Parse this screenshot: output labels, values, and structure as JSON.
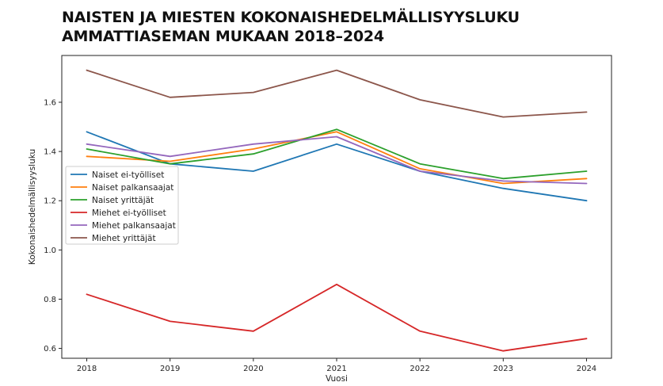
{
  "title": {
    "line1": "NAISTEN JA MIESTEN KOKONAISHEDELMÄLLISYYSLUKU",
    "line2": "AMMATTIASEMAN MUKAAN 2018–2024"
  },
  "chart_data": {
    "type": "line",
    "xlabel": "Vuosi",
    "ylabel": "Kokonaishedelmällisyysluku",
    "x": [
      2018,
      2019,
      2020,
      2021,
      2022,
      2023,
      2024
    ],
    "xlim": [
      2017.7,
      2024.3
    ],
    "ylim": [
      0.56,
      1.79
    ],
    "yticks": [
      0.6,
      0.8,
      1.0,
      1.2,
      1.4,
      1.6
    ],
    "grid": false,
    "legend_position": "center-left",
    "series": [
      {
        "name": "Naiset ei-työlliset",
        "color": "#1f77b4",
        "values": [
          1.48,
          1.35,
          1.32,
          1.43,
          1.32,
          1.25,
          1.2
        ]
      },
      {
        "name": "Naiset palkansaajat",
        "color": "#ff7f0e",
        "values": [
          1.38,
          1.36,
          1.41,
          1.48,
          1.33,
          1.27,
          1.29
        ]
      },
      {
        "name": "Naiset yrittäjät",
        "color": "#2ca02c",
        "values": [
          1.41,
          1.35,
          1.39,
          1.49,
          1.35,
          1.29,
          1.32
        ]
      },
      {
        "name": "Miehet ei-työlliset",
        "color": "#d62728",
        "values": [
          0.82,
          0.71,
          0.67,
          0.86,
          0.67,
          0.59,
          0.64
        ]
      },
      {
        "name": "Miehet palkansaajat",
        "color": "#9467bd",
        "values": [
          1.43,
          1.38,
          1.43,
          1.46,
          1.32,
          1.28,
          1.27
        ]
      },
      {
        "name": "Miehet yrittäjät",
        "color": "#8c564b",
        "values": [
          1.73,
          1.62,
          1.64,
          1.73,
          1.61,
          1.54,
          1.56
        ]
      }
    ]
  }
}
